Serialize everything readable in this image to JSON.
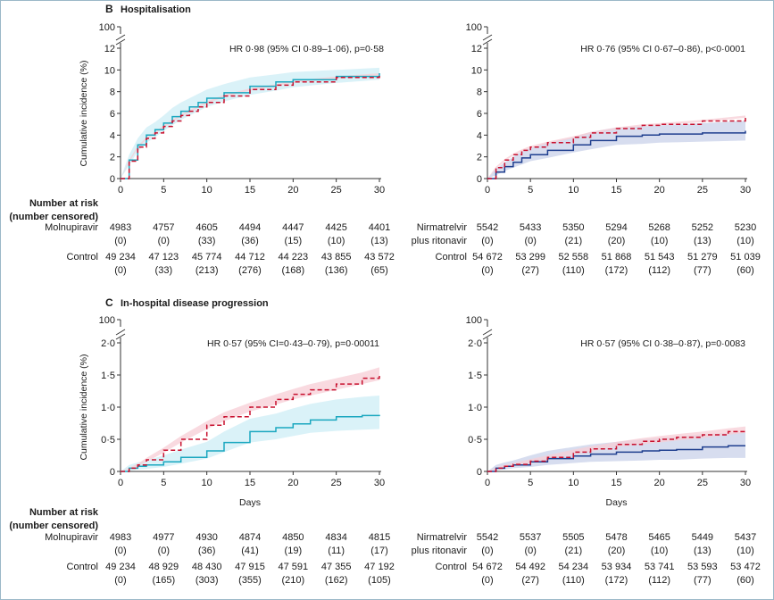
{
  "colors": {
    "molnupiravir": "#1aa7bf",
    "molnupiravir_ci": "#cdeef5",
    "nirmatrelvir": "#1f3f8f",
    "nirmatrelvir_ci": "#c9d2ea",
    "control": "#c8102e",
    "control_ci": "#f7cdd5",
    "frame": "#9bb8c8"
  },
  "sections": [
    {
      "letter": "B",
      "title": "Hospitalisation"
    },
    {
      "letter": "C",
      "title": "In-hospital disease progression"
    }
  ],
  "risk_header": [
    "Number at risk",
    "(number censored)"
  ],
  "risk_labels": {
    "molnupiravir": "Molnupiravir",
    "nirmatrelvir": [
      "Nirmatrelvir",
      "plus ritonavir"
    ],
    "control": "Control"
  },
  "chart_data": [
    {
      "id": "B-left",
      "type": "line",
      "section": "B",
      "annotation": "HR 0·98 (95% CI 0·89–1·06), p=0·58",
      "ylabel": "Cumulative incidence (%)",
      "xlabel": "",
      "xlim": [
        0,
        30
      ],
      "ylim": [
        0,
        12
      ],
      "broken_axis_top": "100",
      "x_ticks": [
        "0",
        "5",
        "10",
        "15",
        "20",
        "25",
        "30"
      ],
      "y_ticks": [
        "0",
        "2",
        "4",
        "6",
        "8",
        "10",
        "12"
      ],
      "x": [
        0,
        1,
        2,
        3,
        4,
        5,
        6,
        7,
        8,
        9,
        10,
        12,
        15,
        18,
        20,
        25,
        30
      ],
      "series": [
        {
          "name": "Molnupiravir",
          "style": "solid",
          "color": "molnupiravir",
          "values": [
            0,
            1.7,
            3.1,
            4.0,
            4.5,
            5.1,
            5.7,
            6.2,
            6.6,
            7.0,
            7.4,
            7.9,
            8.5,
            8.9,
            9.1,
            9.4,
            9.7
          ],
          "ci_low": [
            0,
            1.2,
            2.5,
            3.3,
            3.8,
            4.4,
            4.9,
            5.4,
            5.8,
            6.2,
            6.6,
            7.1,
            7.7,
            8.1,
            8.4,
            8.8,
            9.1
          ],
          "ci_high": [
            0,
            2.2,
            3.7,
            4.7,
            5.2,
            5.8,
            6.5,
            7.0,
            7.4,
            7.8,
            8.2,
            8.7,
            9.3,
            9.6,
            9.8,
            10.0,
            10.2
          ]
        },
        {
          "name": "Control",
          "style": "dashed",
          "color": "control",
          "values": [
            0,
            1.6,
            2.9,
            3.7,
            4.2,
            4.8,
            5.3,
            5.8,
            6.2,
            6.6,
            7.0,
            7.6,
            8.2,
            8.6,
            8.9,
            9.3,
            9.6
          ],
          "ci_low": [
            0,
            1.5,
            2.8,
            3.6,
            4.1,
            4.7,
            5.2,
            5.7,
            6.1,
            6.5,
            6.9,
            7.5,
            8.1,
            8.5,
            8.8,
            9.2,
            9.5
          ],
          "ci_high": [
            0,
            1.7,
            3.0,
            3.8,
            4.3,
            4.9,
            5.4,
            5.9,
            6.3,
            6.7,
            7.1,
            7.7,
            8.3,
            8.7,
            9.0,
            9.4,
            9.7
          ]
        }
      ]
    },
    {
      "id": "B-right",
      "type": "line",
      "section": "B",
      "annotation": "HR 0·76 (95% CI 0·67–0·86), p<0·0001",
      "ylabel": "",
      "xlabel": "",
      "xlim": [
        0,
        30
      ],
      "ylim": [
        0,
        12
      ],
      "broken_axis_top": "100",
      "x_ticks": [
        "0",
        "5",
        "10",
        "15",
        "20",
        "25",
        "30"
      ],
      "y_ticks": [
        "0",
        "2",
        "4",
        "6",
        "8",
        "10",
        "12"
      ],
      "x": [
        0,
        1,
        2,
        3,
        4,
        5,
        7,
        10,
        12,
        15,
        18,
        20,
        25,
        30
      ],
      "series": [
        {
          "name": "Nirmatrelvir plus ritonavir",
          "style": "solid",
          "color": "nirmatrelvir",
          "values": [
            0,
            0.6,
            1.1,
            1.5,
            1.9,
            2.2,
            2.6,
            3.1,
            3.5,
            3.9,
            4.0,
            4.1,
            4.2,
            4.4
          ],
          "ci_low": [
            0,
            0.3,
            0.7,
            1.0,
            1.3,
            1.6,
            1.9,
            2.4,
            2.7,
            3.1,
            3.2,
            3.3,
            3.4,
            3.5
          ],
          "ci_high": [
            0,
            0.9,
            1.5,
            2.0,
            2.5,
            2.8,
            3.3,
            3.8,
            4.3,
            4.7,
            4.8,
            4.9,
            5.1,
            5.3
          ]
        },
        {
          "name": "Control",
          "style": "dashed",
          "color": "control",
          "values": [
            0,
            1.0,
            1.7,
            2.2,
            2.6,
            2.9,
            3.3,
            3.8,
            4.2,
            4.6,
            4.9,
            5.0,
            5.3,
            5.7
          ],
          "ci_low": [
            0,
            0.9,
            1.6,
            2.1,
            2.5,
            2.8,
            3.2,
            3.7,
            4.1,
            4.5,
            4.8,
            4.9,
            5.2,
            5.6
          ],
          "ci_high": [
            0,
            1.1,
            1.8,
            2.3,
            2.7,
            3.0,
            3.4,
            3.9,
            4.3,
            4.7,
            5.0,
            5.1,
            5.4,
            5.8
          ]
        }
      ]
    },
    {
      "id": "C-left",
      "type": "line",
      "section": "C",
      "annotation": "HR 0·57 (95% CI=0·43–0·79), p=0·00011",
      "ylabel": "Cumulative incidence (%)",
      "xlabel": "Days",
      "xlim": [
        0,
        30
      ],
      "ylim": [
        0,
        2.0
      ],
      "broken_axis_top": "100",
      "x_ticks": [
        "0",
        "5",
        "10",
        "15",
        "20",
        "25",
        "30"
      ],
      "y_ticks": [
        "0",
        "0·5",
        "1·0",
        "1·5",
        "2·0"
      ],
      "x": [
        0,
        1,
        2,
        3,
        5,
        7,
        10,
        12,
        15,
        18,
        20,
        22,
        25,
        28,
        30
      ],
      "series": [
        {
          "name": "Molnupiravir",
          "style": "solid",
          "color": "molnupiravir",
          "values": [
            0,
            0.05,
            0.08,
            0.1,
            0.15,
            0.22,
            0.32,
            0.45,
            0.62,
            0.68,
            0.74,
            0.8,
            0.85,
            0.87,
            0.88
          ],
          "ci_low": [
            0,
            0.01,
            0.03,
            0.04,
            0.07,
            0.12,
            0.2,
            0.3,
            0.45,
            0.5,
            0.55,
            0.6,
            0.63,
            0.65,
            0.66
          ],
          "ci_high": [
            0,
            0.1,
            0.14,
            0.17,
            0.25,
            0.34,
            0.46,
            0.62,
            0.82,
            0.9,
            0.98,
            1.05,
            1.12,
            1.16,
            1.18
          ]
        },
        {
          "name": "Control",
          "style": "dashed",
          "color": "control",
          "values": [
            0,
            0.05,
            0.1,
            0.18,
            0.33,
            0.5,
            0.72,
            0.85,
            1.0,
            1.12,
            1.2,
            1.27,
            1.36,
            1.45,
            1.52
          ],
          "ci_low": [
            0,
            0.04,
            0.08,
            0.15,
            0.29,
            0.45,
            0.66,
            0.78,
            0.93,
            1.04,
            1.12,
            1.18,
            1.27,
            1.36,
            1.42
          ],
          "ci_high": [
            0,
            0.06,
            0.12,
            0.21,
            0.37,
            0.55,
            0.78,
            0.92,
            1.07,
            1.2,
            1.28,
            1.36,
            1.45,
            1.54,
            1.62
          ]
        }
      ]
    },
    {
      "id": "C-right",
      "type": "line",
      "section": "C",
      "annotation": "HR 0·57 (95% CI 0·38–0·87), p=0·0083",
      "ylabel": "",
      "xlabel": "Days",
      "xlim": [
        0,
        30
      ],
      "ylim": [
        0,
        2.0
      ],
      "broken_axis_top": "100",
      "x_ticks": [
        "0",
        "5",
        "10",
        "15",
        "20",
        "25",
        "30"
      ],
      "y_ticks": [
        "0",
        "0·5",
        "1·0",
        "1·5",
        "2·0"
      ],
      "x": [
        0,
        1,
        2,
        3,
        5,
        7,
        10,
        12,
        15,
        18,
        20,
        22,
        25,
        28,
        30
      ],
      "series": [
        {
          "name": "Nirmatrelvir plus ritonavir",
          "style": "solid",
          "color": "nirmatrelvir",
          "values": [
            0,
            0.05,
            0.08,
            0.1,
            0.15,
            0.2,
            0.24,
            0.27,
            0.3,
            0.32,
            0.33,
            0.34,
            0.38,
            0.4,
            0.4
          ],
          "ci_low": [
            0,
            0.02,
            0.03,
            0.05,
            0.07,
            0.1,
            0.13,
            0.15,
            0.16,
            0.17,
            0.18,
            0.18,
            0.2,
            0.21,
            0.21
          ],
          "ci_high": [
            0,
            0.1,
            0.14,
            0.17,
            0.25,
            0.32,
            0.38,
            0.42,
            0.46,
            0.5,
            0.52,
            0.54,
            0.58,
            0.6,
            0.61
          ]
        },
        {
          "name": "Control",
          "style": "dashed",
          "color": "control",
          "values": [
            0,
            0.05,
            0.08,
            0.11,
            0.16,
            0.22,
            0.3,
            0.35,
            0.42,
            0.47,
            0.5,
            0.53,
            0.57,
            0.62,
            0.65
          ],
          "ci_low": [
            0,
            0.04,
            0.06,
            0.09,
            0.13,
            0.19,
            0.26,
            0.31,
            0.38,
            0.42,
            0.45,
            0.48,
            0.52,
            0.57,
            0.6
          ],
          "ci_high": [
            0,
            0.06,
            0.1,
            0.13,
            0.19,
            0.25,
            0.34,
            0.39,
            0.46,
            0.52,
            0.55,
            0.58,
            0.62,
            0.67,
            0.7
          ]
        }
      ]
    }
  ],
  "risk_tables": {
    "B-left": {
      "treatment": {
        "at_risk": [
          "4983",
          "4757",
          "4605",
          "4494",
          "4447",
          "4425",
          "4401"
        ],
        "censored": [
          "(0)",
          "(0)",
          "(33)",
          "(36)",
          "(15)",
          "(10)",
          "(13)"
        ]
      },
      "control": {
        "at_risk": [
          "49 234",
          "47 123",
          "45 774",
          "44 712",
          "44 223",
          "43 855",
          "43 572"
        ],
        "censored": [
          "(0)",
          "(33)",
          "(213)",
          "(276)",
          "(168)",
          "(136)",
          "(65)"
        ]
      }
    },
    "B-right": {
      "treatment": {
        "at_risk": [
          "5542",
          "5433",
          "5350",
          "5294",
          "5268",
          "5252",
          "5230"
        ],
        "censored": [
          "(0)",
          "(0)",
          "(21)",
          "(20)",
          "(10)",
          "(13)",
          "(10)"
        ]
      },
      "control": {
        "at_risk": [
          "54 672",
          "53 299",
          "52 558",
          "51 868",
          "51 543",
          "51 279",
          "51 039"
        ],
        "censored": [
          "(0)",
          "(27)",
          "(110)",
          "(172)",
          "(112)",
          "(77)",
          "(60)"
        ]
      }
    },
    "C-left": {
      "treatment": {
        "at_risk": [
          "4983",
          "4977",
          "4930",
          "4874",
          "4850",
          "4834",
          "4815"
        ],
        "censored": [
          "(0)",
          "(0)",
          "(36)",
          "(41)",
          "(19)",
          "(11)",
          "(17)"
        ]
      },
      "control": {
        "at_risk": [
          "49 234",
          "48 929",
          "48 430",
          "47 915",
          "47 591",
          "47 355",
          "47 192"
        ],
        "censored": [
          "(0)",
          "(165)",
          "(303)",
          "(355)",
          "(210)",
          "(162)",
          "(105)"
        ]
      }
    },
    "C-right": {
      "treatment": {
        "at_risk": [
          "5542",
          "5537",
          "5505",
          "5478",
          "5465",
          "5449",
          "5437"
        ],
        "censored": [
          "(0)",
          "(0)",
          "(21)",
          "(20)",
          "(10)",
          "(13)",
          "(10)"
        ]
      },
      "control": {
        "at_risk": [
          "54 672",
          "54 492",
          "54 234",
          "53 934",
          "53 741",
          "53 593",
          "53 472"
        ],
        "censored": [
          "(0)",
          "(27)",
          "(110)",
          "(172)",
          "(112)",
          "(77)",
          "(60)"
        ]
      }
    }
  }
}
